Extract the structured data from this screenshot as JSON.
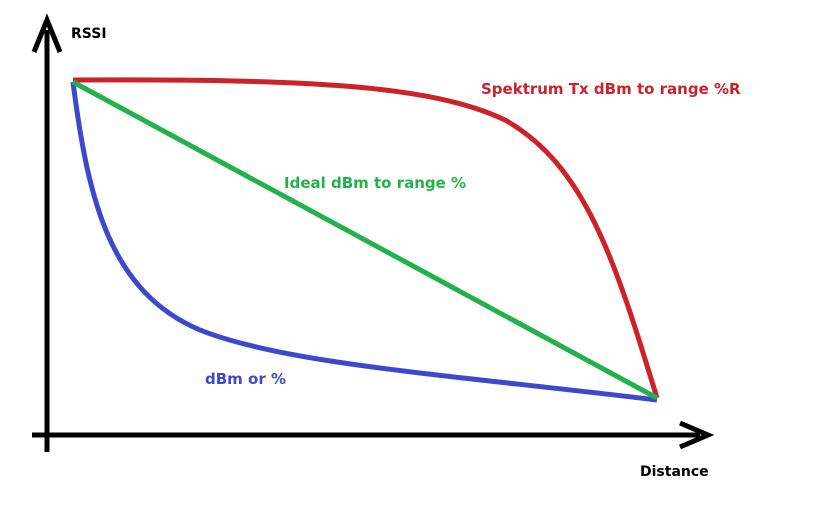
{
  "axes": {
    "y_label": "RSSI",
    "x_label": "Distance"
  },
  "curves": [
    {
      "label": "Spektrum Tx dBm to range %R",
      "color": "#cc2229"
    },
    {
      "label": "Ideal dBm to range %",
      "color": "#22b14c"
    },
    {
      "label": "dBm or %",
      "color": "#3f48cc"
    }
  ],
  "axis_color": "#000000"
}
